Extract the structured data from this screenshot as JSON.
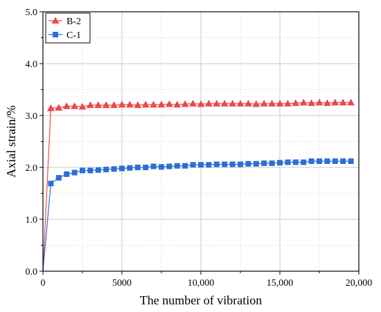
{
  "chart_data": {
    "type": "line",
    "xlabel": "The number of vibration",
    "ylabel": "Axial strain/%",
    "xlim": [
      0,
      20000
    ],
    "ylim": [
      0,
      5.0
    ],
    "x_ticks": [
      0,
      5000,
      10000,
      15000,
      20000
    ],
    "x_tick_labels": [
      "0",
      "5000",
      "10,000",
      "15,000",
      "20,000"
    ],
    "y_ticks": [
      0,
      1,
      2,
      3,
      4,
      5
    ],
    "y_tick_labels": [
      "0.0",
      "1.0",
      "2.0",
      "3.0",
      "4.0",
      "5.0"
    ],
    "grid": true,
    "legend_position": "top-left",
    "series": [
      {
        "name": "B-2",
        "color": "#e84a4a",
        "marker": "triangle",
        "x": [
          0,
          500,
          1000,
          1500,
          2000,
          2500,
          3000,
          3500,
          4000,
          4500,
          5000,
          5500,
          6000,
          6500,
          7000,
          7500,
          8000,
          8500,
          9000,
          9500,
          10000,
          10500,
          11000,
          11500,
          12000,
          12500,
          13000,
          13500,
          14000,
          14500,
          15000,
          15500,
          16000,
          16500,
          17000,
          17500,
          18000,
          18500,
          19000,
          19500
        ],
        "values": [
          0,
          3.14,
          3.15,
          3.18,
          3.18,
          3.17,
          3.2,
          3.2,
          3.2,
          3.2,
          3.21,
          3.21,
          3.2,
          3.21,
          3.21,
          3.21,
          3.22,
          3.21,
          3.22,
          3.23,
          3.22,
          3.23,
          3.23,
          3.23,
          3.23,
          3.23,
          3.23,
          3.22,
          3.23,
          3.23,
          3.23,
          3.23,
          3.24,
          3.25,
          3.24,
          3.25,
          3.24,
          3.25,
          3.25,
          3.25
        ]
      },
      {
        "name": "C-1",
        "color": "#2a6fd6",
        "marker": "square",
        "x": [
          0,
          500,
          1000,
          1500,
          2000,
          2500,
          3000,
          3500,
          4000,
          4500,
          5000,
          5500,
          6000,
          6500,
          7000,
          7500,
          8000,
          8500,
          9000,
          9500,
          10000,
          10500,
          11000,
          11500,
          12000,
          12500,
          13000,
          13500,
          14000,
          14500,
          15000,
          15500,
          16000,
          16500,
          17000,
          17500,
          18000,
          18500,
          19000,
          19500
        ],
        "values": [
          0,
          1.69,
          1.8,
          1.87,
          1.9,
          1.94,
          1.94,
          1.95,
          1.96,
          1.97,
          1.98,
          1.99,
          2.0,
          2.0,
          2.02,
          2.01,
          2.02,
          2.03,
          2.03,
          2.05,
          2.05,
          2.05,
          2.06,
          2.06,
          2.06,
          2.06,
          2.07,
          2.07,
          2.08,
          2.08,
          2.09,
          2.1,
          2.1,
          2.1,
          2.12,
          2.12,
          2.12,
          2.12,
          2.12,
          2.12
        ]
      }
    ]
  }
}
